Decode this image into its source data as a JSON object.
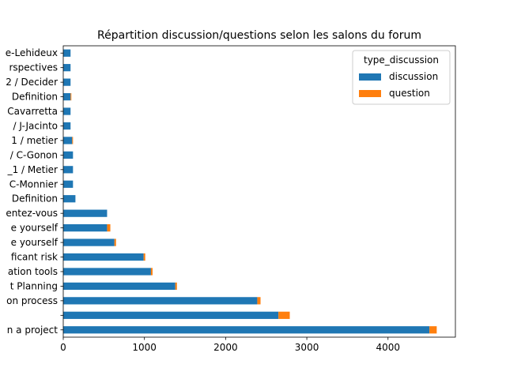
{
  "chart_data": {
    "type": "bar",
    "orientation": "horizontal",
    "stacked": true,
    "title": "Répartition discussion/questions selon les salons du forum",
    "xlabel": "",
    "ylabel": "",
    "xlim": [
      0,
      4830
    ],
    "xticks": [
      0,
      1000,
      2000,
      3000,
      4000
    ],
    "xtick_labels": [
      "0",
      "1000",
      "2000",
      "3000",
      "4000"
    ],
    "grid": false,
    "categories": [
      "n a project",
      "",
      "on process",
      "t Planning",
      "ation tools",
      "ficant risk",
      "e yourself",
      "e yourself",
      "entez-vous",
      "Definition",
      "C-Monnier",
      "_1 / Metier",
      "/ C-Gonon",
      "1 / metier",
      "/ J-Jacinto",
      "Cavarretta",
      "Definition",
      "2 / Decider",
      "rspectives",
      "e-Lehideux"
    ],
    "series": [
      {
        "name": "discussion",
        "color": "#1f77b4",
        "values": [
          4510,
          2650,
          2390,
          1380,
          1080,
          990,
          630,
          540,
          540,
          150,
          120,
          120,
          120,
          110,
          90,
          90,
          90,
          90,
          90,
          90
        ]
      },
      {
        "name": "question",
        "color": "#ff7f0e",
        "values": [
          90,
          140,
          40,
          20,
          20,
          20,
          20,
          40,
          0,
          0,
          0,
          0,
          0,
          10,
          0,
          0,
          10,
          0,
          0,
          0
        ]
      }
    ],
    "legend": {
      "title": "type_discussion",
      "position": "top-right"
    }
  }
}
